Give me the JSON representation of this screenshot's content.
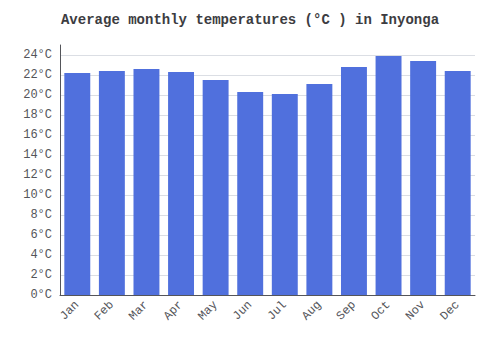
{
  "chart_data": {
    "type": "bar",
    "title": "Average monthly temperatures (°C ) in Inyonga",
    "categories": [
      "Jan",
      "Feb",
      "Mar",
      "Apr",
      "May",
      "Jun",
      "Jul",
      "Aug",
      "Sep",
      "Oct",
      "Nov",
      "Dec"
    ],
    "values": [
      22.2,
      22.4,
      22.6,
      22.3,
      21.5,
      20.3,
      20.1,
      21.1,
      22.8,
      23.9,
      23.4,
      22.4
    ],
    "ylim": [
      0,
      25
    ],
    "yticks": [
      {
        "value": 0,
        "label": "0°C"
      },
      {
        "value": 2,
        "label": "2°C"
      },
      {
        "value": 4,
        "label": "4°C"
      },
      {
        "value": 6,
        "label": "6°C"
      },
      {
        "value": 8,
        "label": "8°C"
      },
      {
        "value": 10,
        "label": "10°C"
      },
      {
        "value": 12,
        "label": "12°C"
      },
      {
        "value": 14,
        "label": "14°C"
      },
      {
        "value": 16,
        "label": "16°C"
      },
      {
        "value": 18,
        "label": "18°C"
      },
      {
        "value": 20,
        "label": "20°C"
      },
      {
        "value": 22,
        "label": "22°C"
      },
      {
        "value": 24,
        "label": "24°C"
      }
    ],
    "grid": true
  }
}
